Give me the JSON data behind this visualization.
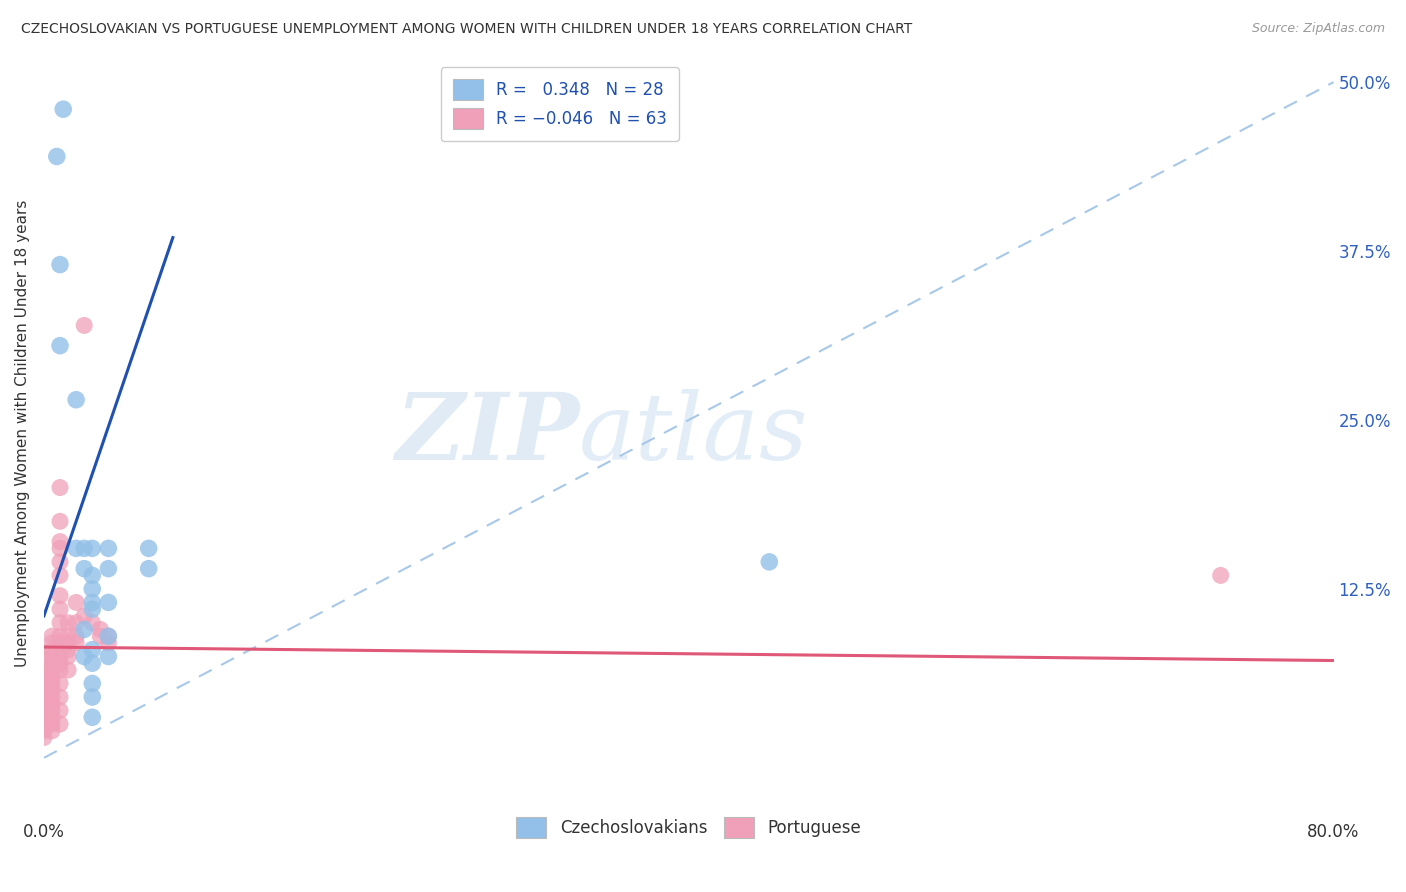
{
  "title": "CZECHOSLOVAKIAN VS PORTUGUESE UNEMPLOYMENT AMONG WOMEN WITH CHILDREN UNDER 18 YEARS CORRELATION CHART",
  "source": "Source: ZipAtlas.com",
  "ylabel": "Unemployment Among Women with Children Under 18 years",
  "xlim": [
    0.0,
    0.8
  ],
  "ylim": [
    -0.04,
    0.52
  ],
  "yticks_right": [
    0.5,
    0.375,
    0.25,
    0.125
  ],
  "ytick_labels_right": [
    "50.0%",
    "37.5%",
    "25.0%",
    "12.5%"
  ],
  "blue_color": "#92C0E8",
  "pink_color": "#F0A0B8",
  "blue_line_color": "#2050B0",
  "pink_line_color": "#E05878",
  "dash_line_color": "#A8C8E8",
  "watermark_zip": "ZIP",
  "watermark_atlas": "atlas",
  "blue_line_x": [
    0.0,
    0.08
  ],
  "blue_line_y": [
    0.105,
    0.385
  ],
  "pink_line_x": [
    0.0,
    0.8
  ],
  "pink_line_y": [
    0.082,
    0.072
  ],
  "czecho_points": [
    [
      0.008,
      0.445
    ],
    [
      0.012,
      0.48
    ],
    [
      0.01,
      0.365
    ],
    [
      0.01,
      0.305
    ],
    [
      0.02,
      0.265
    ],
    [
      0.02,
      0.155
    ],
    [
      0.025,
      0.155
    ],
    [
      0.025,
      0.14
    ],
    [
      0.03,
      0.155
    ],
    [
      0.03,
      0.135
    ],
    [
      0.03,
      0.125
    ],
    [
      0.03,
      0.115
    ],
    [
      0.03,
      0.11
    ],
    [
      0.025,
      0.095
    ],
    [
      0.03,
      0.08
    ],
    [
      0.025,
      0.075
    ],
    [
      0.03,
      0.07
    ],
    [
      0.03,
      0.055
    ],
    [
      0.03,
      0.045
    ],
    [
      0.03,
      0.03
    ],
    [
      0.04,
      0.155
    ],
    [
      0.04,
      0.14
    ],
    [
      0.04,
      0.115
    ],
    [
      0.04,
      0.09
    ],
    [
      0.04,
      0.075
    ],
    [
      0.065,
      0.155
    ],
    [
      0.065,
      0.14
    ],
    [
      0.45,
      0.145
    ]
  ],
  "port_points": [
    [
      0.0,
      0.075
    ],
    [
      0.0,
      0.065
    ],
    [
      0.0,
      0.06
    ],
    [
      0.0,
      0.055
    ],
    [
      0.0,
      0.05
    ],
    [
      0.0,
      0.045
    ],
    [
      0.0,
      0.04
    ],
    [
      0.0,
      0.035
    ],
    [
      0.0,
      0.03
    ],
    [
      0.0,
      0.025
    ],
    [
      0.0,
      0.02
    ],
    [
      0.0,
      0.015
    ],
    [
      0.005,
      0.09
    ],
    [
      0.005,
      0.085
    ],
    [
      0.005,
      0.08
    ],
    [
      0.005,
      0.075
    ],
    [
      0.005,
      0.07
    ],
    [
      0.005,
      0.065
    ],
    [
      0.005,
      0.06
    ],
    [
      0.005,
      0.055
    ],
    [
      0.005,
      0.05
    ],
    [
      0.005,
      0.045
    ],
    [
      0.005,
      0.04
    ],
    [
      0.005,
      0.035
    ],
    [
      0.005,
      0.03
    ],
    [
      0.005,
      0.025
    ],
    [
      0.005,
      0.02
    ],
    [
      0.01,
      0.2
    ],
    [
      0.01,
      0.175
    ],
    [
      0.01,
      0.16
    ],
    [
      0.01,
      0.155
    ],
    [
      0.01,
      0.145
    ],
    [
      0.01,
      0.135
    ],
    [
      0.01,
      0.12
    ],
    [
      0.01,
      0.11
    ],
    [
      0.01,
      0.1
    ],
    [
      0.01,
      0.09
    ],
    [
      0.01,
      0.085
    ],
    [
      0.01,
      0.075
    ],
    [
      0.01,
      0.07
    ],
    [
      0.01,
      0.065
    ],
    [
      0.01,
      0.055
    ],
    [
      0.01,
      0.045
    ],
    [
      0.01,
      0.035
    ],
    [
      0.01,
      0.025
    ],
    [
      0.015,
      0.1
    ],
    [
      0.015,
      0.09
    ],
    [
      0.015,
      0.085
    ],
    [
      0.015,
      0.08
    ],
    [
      0.015,
      0.075
    ],
    [
      0.015,
      0.065
    ],
    [
      0.02,
      0.115
    ],
    [
      0.02,
      0.1
    ],
    [
      0.02,
      0.09
    ],
    [
      0.02,
      0.085
    ],
    [
      0.025,
      0.32
    ],
    [
      0.025,
      0.105
    ],
    [
      0.03,
      0.1
    ],
    [
      0.035,
      0.095
    ],
    [
      0.035,
      0.09
    ],
    [
      0.04,
      0.09
    ],
    [
      0.04,
      0.085
    ],
    [
      0.73,
      0.135
    ]
  ]
}
